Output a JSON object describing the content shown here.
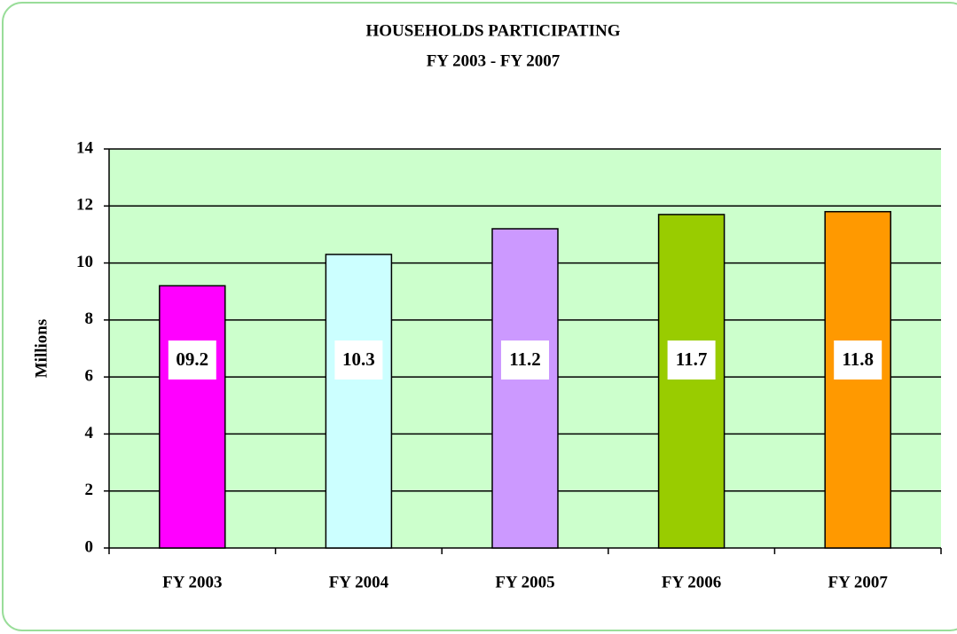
{
  "chart_data": {
    "type": "bar",
    "title": "HOUSEHOLDS PARTICIPATING",
    "subtitle": "FY 2003 - FY 2007",
    "y_label": "Millions",
    "categories": [
      "FY 2003",
      "FY 2004",
      "FY 2005",
      "FY 2006",
      "FY 2007"
    ],
    "values": [
      9.2,
      10.3,
      11.2,
      11.7,
      11.8
    ],
    "value_labels": [
      "09.2",
      "10.3",
      "11.2",
      "11.7",
      "11.8"
    ],
    "colors": [
      "#ff00ff",
      "#ccffff",
      "#cc99ff",
      "#99cc00",
      "#ff9900"
    ],
    "ylim": [
      0,
      14
    ],
    "yticks": [
      0,
      2,
      4,
      6,
      8,
      10,
      12,
      14
    ],
    "grid": true
  }
}
